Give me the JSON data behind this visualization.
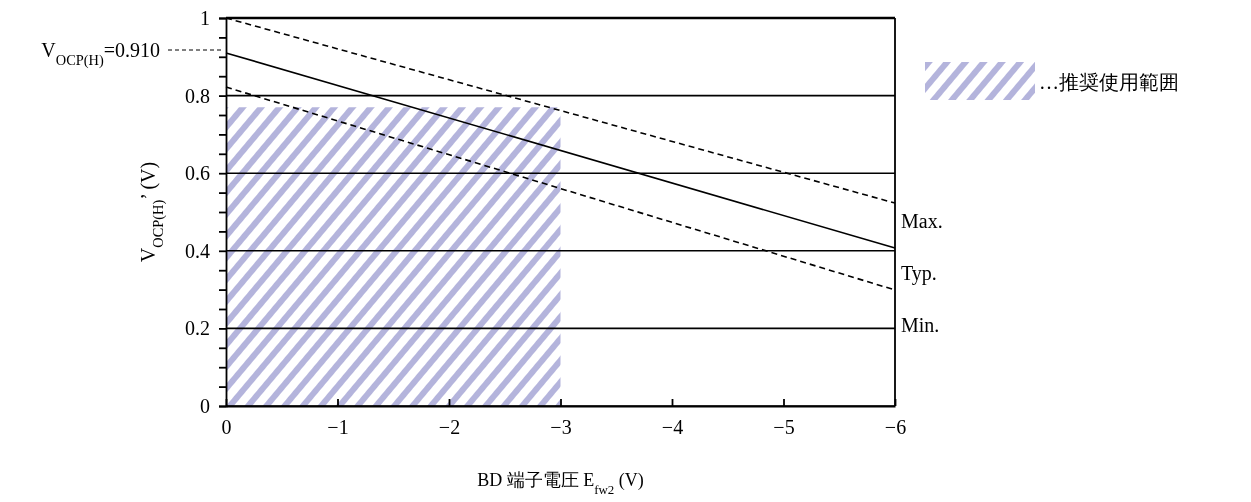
{
  "chart_data": {
    "type": "line",
    "xlabel": "BD 端子電圧  E$_{fw2}$ (V)",
    "ylabel": "V$_{OCP(H)}$’ (V)",
    "xlim": [
      0,
      -6
    ],
    "xticks": [
      0,
      {
        "value": -1,
        "label": "−1"
      },
      {
        "value": -2,
        "label": "−2"
      },
      {
        "value": -3,
        "label": "−3"
      },
      {
        "value": -4,
        "label": "−4"
      },
      {
        "value": -5,
        "label": "−5"
      },
      {
        "value": -6,
        "label": "−6"
      }
    ],
    "ylim": [
      0,
      1
    ],
    "yticks": [
      0,
      {
        "value": 0.05,
        "label": null
      },
      {
        "value": 0.1,
        "label": null
      },
      {
        "value": 0.15,
        "label": null
      },
      {
        "value": 0.2,
        "label": "0.2"
      },
      {
        "value": 0.25,
        "label": null
      },
      {
        "value": 0.3,
        "label": null
      },
      {
        "value": 0.35,
        "label": null
      },
      {
        "value": 0.4,
        "label": "0.4"
      },
      {
        "value": 0.45,
        "label": null
      },
      {
        "value": 0.5,
        "label": null
      },
      {
        "value": 0.55,
        "label": null
      },
      {
        "value": 0.6,
        "label": "0.6"
      },
      {
        "value": 0.65,
        "label": null
      },
      {
        "value": 0.7,
        "label": null
      },
      {
        "value": 0.75,
        "label": null
      },
      {
        "value": 0.8,
        "label": "0.8"
      },
      {
        "value": 0.85,
        "label": null
      },
      {
        "value": 0.9,
        "label": null
      },
      {
        "value": 0.95,
        "label": null
      },
      1
    ],
    "grid": "y",
    "legend": "top right",
    "series": [
      {
        "type": "area",
        "name": "…推奨使用範囲",
        "color": "#b4b4dc",
        "x": [
          0,
          -3
        ],
        "values": [
          0.77,
          0.77
        ]
      },
      {
        "color": "#000000",
        "line_style": "dashed",
        "x": [
          0,
          -6
        ],
        "values": [
          1.0,
          0.523
        ]
      },
      {
        "color": "#000000",
        "line_style": "solid",
        "x": [
          0,
          -6
        ],
        "values": [
          0.91,
          0.407
        ]
      },
      {
        "color": "#000000",
        "line_style": "dashed",
        "x": [
          0,
          -6
        ],
        "values": [
          0.822,
          0.299
        ]
      }
    ],
    "annotations": [
      "V$_{OCP(H)}$=0.910",
      "Max.",
      "Typ.",
      "Min."
    ]
  }
}
